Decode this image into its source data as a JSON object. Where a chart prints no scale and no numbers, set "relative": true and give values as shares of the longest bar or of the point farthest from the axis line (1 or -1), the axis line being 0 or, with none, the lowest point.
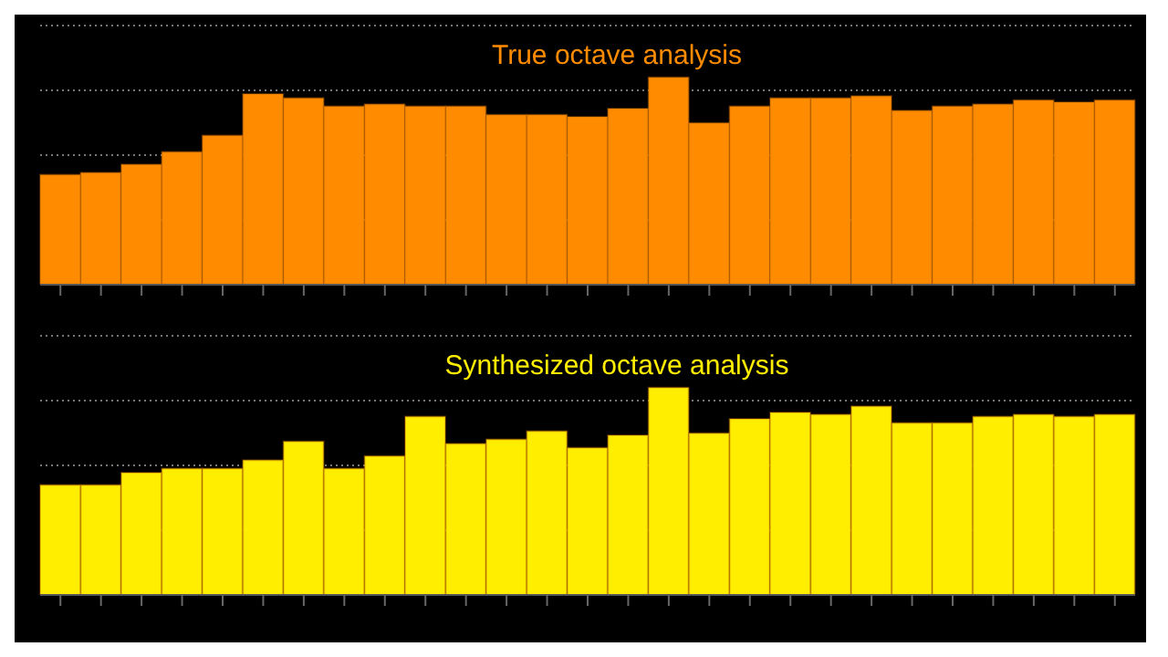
{
  "chart_data": [
    {
      "type": "bar",
      "title": "True octave analysis",
      "relative": true,
      "grid": "y",
      "categories": [
        null,
        null,
        null,
        null,
        null,
        null,
        null,
        null,
        null,
        null,
        null,
        null,
        null,
        null,
        null,
        null,
        null,
        null,
        null,
        null,
        null,
        null,
        null,
        null,
        null,
        null,
        null
      ],
      "series": [
        {
          "color": "#ff8c00",
          "values": [
            0.53,
            0.54,
            0.58,
            0.64,
            0.72,
            0.92,
            0.9,
            0.86,
            0.87,
            0.86,
            0.86,
            0.82,
            0.82,
            0.81,
            0.85,
            1,
            0.78,
            0.86,
            0.9,
            0.9,
            0.91,
            0.84,
            0.86,
            0.87,
            0.89,
            0.88,
            0.89
          ]
        }
      ]
    },
    {
      "type": "bar",
      "title": "Synthesized octave analysis",
      "relative": true,
      "grid": "y",
      "categories": [
        null,
        null,
        null,
        null,
        null,
        null,
        null,
        null,
        null,
        null,
        null,
        null,
        null,
        null,
        null,
        null,
        null,
        null,
        null,
        null,
        null,
        null,
        null,
        null,
        null,
        null,
        null
      ],
      "series": [
        {
          "color": "#ffee00",
          "values": [
            0.53,
            0.53,
            0.59,
            0.61,
            0.61,
            0.65,
            0.74,
            0.61,
            0.67,
            0.86,
            0.73,
            0.75,
            0.79,
            0.71,
            0.77,
            1,
            0.78,
            0.85,
            0.88,
            0.87,
            0.91,
            0.83,
            0.83,
            0.86,
            0.87,
            0.86,
            0.87
          ]
        }
      ]
    }
  ]
}
